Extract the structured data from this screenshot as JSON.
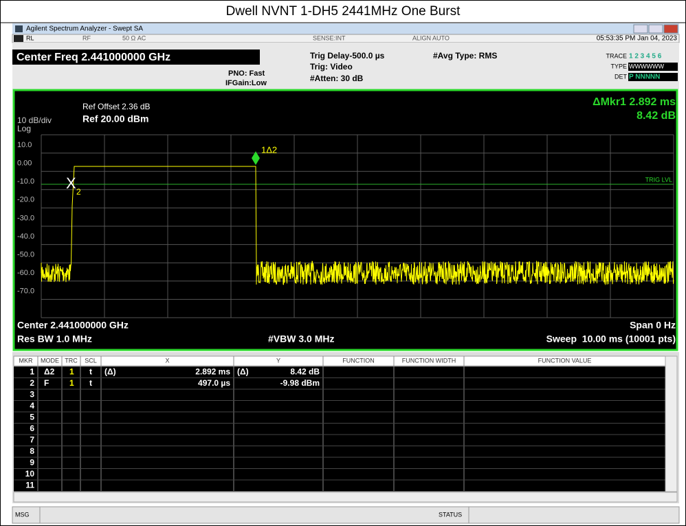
{
  "title": "Dwell NVNT 1-DH5 2441MHz One Burst",
  "window": {
    "title": "Agilent Spectrum Analyzer - Swept SA"
  },
  "status_bar": {
    "rl": "RL",
    "rf": "RF",
    "impedance": "50 Ω  AC",
    "sense": "SENSE:INT",
    "align": "ALIGN AUTO",
    "datetime": "05:53:35 PM Jan 04, 2023"
  },
  "header": {
    "center_freq": "Center Freq 2.441000000 GHz",
    "pno": "PNO: Fast",
    "ifgain": "IFGain:Low",
    "trig_delay": "Trig Delay-500.0 µs",
    "trig": "Trig: Video",
    "atten": "#Atten: 30 dB",
    "avg_type": "#Avg Type: RMS",
    "trace_label": "TRACE",
    "trace_values": "1 2 3 4 5 6",
    "type_label": "TYPE",
    "type_values": "WWWWWW",
    "det_label": "DET",
    "det_values": "P NNNNN"
  },
  "plot": {
    "ref_offset": "Ref Offset 2.36 dB",
    "scale": "10 dB/div",
    "ref_level": "Ref 20.00 dBm",
    "log": "Log",
    "marker_readout": "ΔMkr1 2.892 ms",
    "marker_value": "8.42 dB",
    "trig_level": "TRIG LVL",
    "marker_1": "1Δ2",
    "marker_2_x": "X",
    "marker_2_n": "2",
    "y_labels": [
      "10.0",
      "0.00",
      "-10.0",
      "-20.0",
      "-30.0",
      "-40.0",
      "-50.0",
      "-60.0",
      "-70.0"
    ],
    "center": "Center 2.441000000 GHz",
    "span": "Span 0 Hz",
    "res_bw": "Res BW 1.0 MHz",
    "vbw": "#VBW 3.0 MHz",
    "sweep": "Sweep  10.00 ms (10001 pts)"
  },
  "table": {
    "columns": [
      "MKR",
      "MODE",
      "TRC",
      "SCL",
      "X",
      "Y",
      "FUNCTION",
      "FUNCTION WIDTH",
      "FUNCTION VALUE"
    ],
    "rows": [
      {
        "mkr": "1",
        "mode": "Δ2",
        "trc": "1",
        "scl": "t",
        "x_ref": "(Δ)",
        "x": "2.892 ms",
        "y_ref": "(Δ)",
        "y": "8.42 dB"
      },
      {
        "mkr": "2",
        "mode": "F",
        "trc": "1",
        "scl": "t",
        "x": "497.0 µs",
        "y": "-9.98 dBm"
      },
      {
        "mkr": "3"
      },
      {
        "mkr": "4"
      },
      {
        "mkr": "5"
      },
      {
        "mkr": "6"
      },
      {
        "mkr": "7"
      },
      {
        "mkr": "8"
      },
      {
        "mkr": "9"
      },
      {
        "mkr": "10"
      },
      {
        "mkr": "11"
      }
    ]
  },
  "footer": {
    "msg": "MSG",
    "status": "STATUS"
  }
}
